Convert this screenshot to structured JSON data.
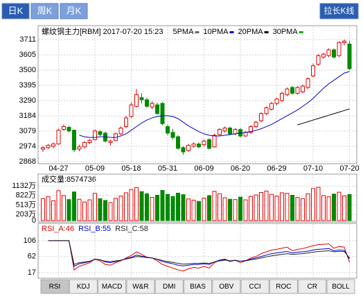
{
  "tabs": [
    {
      "label": "日K",
      "active": true
    },
    {
      "label": "周K",
      "active": false
    },
    {
      "label": "月K",
      "active": false
    }
  ],
  "stretch_button": "拉长K线",
  "chart_data": [
    {
      "type": "candlestick",
      "title": "螺纹钢主力[RBM] 2017-07-20 15:23",
      "categories": [
        null,
        null,
        null,
        "04-27",
        null,
        null,
        null,
        null,
        null,
        null,
        "05-09",
        null,
        null,
        null,
        null,
        null,
        null,
        "05-18",
        null,
        null,
        null,
        null,
        null,
        null,
        "05-31",
        null,
        null,
        null,
        null,
        null,
        null,
        "06-09",
        null,
        null,
        null,
        null,
        null,
        null,
        "06-20",
        null,
        null,
        null,
        null,
        null,
        null,
        "06-29",
        null,
        null,
        null,
        null,
        null,
        null,
        "07-10",
        null,
        null,
        null,
        null,
        null,
        null,
        "07-20"
      ],
      "open": [
        2955,
        2965,
        2975,
        2990,
        3090,
        3105,
        3085,
        2955,
        2970,
        3000,
        3020,
        3075,
        3065,
        3000,
        3015,
        3060,
        3110,
        3180,
        3250,
        3310,
        3295,
        3245,
        3260,
        3270,
        3110,
        3070,
        3040,
        2965,
        2945,
        2975,
        2990,
        2985,
        3020,
        2970,
        3055,
        3080,
        3100,
        3060,
        3090,
        3045,
        3070,
        3110,
        3150,
        3200,
        3230,
        3270,
        3290,
        3330,
        3380,
        3340,
        3350,
        3380,
        3460,
        3540,
        3590,
        3600,
        3640,
        3600,
        3690,
        3680
      ],
      "high": [
        2975,
        2990,
        3000,
        3095,
        3125,
        3115,
        3090,
        2985,
        3010,
        3025,
        3090,
        3085,
        3075,
        3020,
        3070,
        3110,
        3185,
        3275,
        3370,
        3340,
        3310,
        3285,
        3275,
        3280,
        3125,
        3095,
        3050,
        2975,
        2990,
        3000,
        3000,
        3020,
        3030,
        3060,
        3100,
        3110,
        3110,
        3100,
        3100,
        3080,
        3120,
        3150,
        3210,
        3250,
        3280,
        3310,
        3350,
        3380,
        3390,
        3390,
        3400,
        3450,
        3545,
        3610,
        3620,
        3650,
        3650,
        3700,
        3711,
        3700
      ],
      "low": [
        2935,
        2955,
        2960,
        2985,
        3080,
        3070,
        2935,
        2940,
        2960,
        2990,
        3015,
        3045,
        3000,
        2980,
        3010,
        3050,
        3100,
        3170,
        3240,
        3270,
        3240,
        3230,
        3190,
        3120,
        3050,
        3020,
        2950,
        2915,
        2935,
        2965,
        2960,
        2975,
        2950,
        2965,
        3045,
        3070,
        3050,
        3050,
        3035,
        3040,
        3060,
        3100,
        3140,
        3190,
        3220,
        3255,
        3280,
        3320,
        3330,
        3330,
        3340,
        3370,
        3450,
        3530,
        3580,
        3590,
        3580,
        3590,
        3670,
        3500
      ],
      "close": [
        2965,
        2980,
        2990,
        3085,
        3110,
        3080,
        2950,
        2970,
        3000,
        3015,
        3080,
        3055,
        3010,
        3010,
        3060,
        3100,
        3170,
        3260,
        3330,
        3295,
        3250,
        3270,
        3200,
        3130,
        3065,
        3035,
        2960,
        2935,
        2980,
        2990,
        2970,
        3010,
        2960,
        3050,
        3090,
        3100,
        3060,
        3090,
        3045,
        3070,
        3110,
        3140,
        3200,
        3240,
        3270,
        3300,
        3340,
        3370,
        3340,
        3380,
        3390,
        3440,
        3530,
        3600,
        3610,
        3640,
        3590,
        3690,
        3700,
        3510
      ],
      "up_color": "#e00000",
      "down_color": "#008a00",
      "series": [
        {
          "name": "5PMA",
          "color": "#666666"
        },
        {
          "name": "10PMA",
          "color": "#0000cc",
          "values": [
            null,
            null,
            null,
            null,
            null,
            null,
            null,
            3050,
            3040,
            3035,
            3035,
            3040,
            3040,
            3035,
            3035,
            3045,
            3060,
            3085,
            3110,
            3135,
            3155,
            3170,
            3180,
            3185,
            3185,
            3180,
            3165,
            3140,
            3115,
            3095,
            3075,
            3060,
            3050,
            3045,
            3045,
            3050,
            3055,
            3060,
            3065,
            3070,
            3075,
            3085,
            3095,
            3110,
            3125,
            3145,
            3165,
            3185,
            3205,
            3225,
            3250,
            3275,
            3305,
            3340,
            3375,
            3405,
            3430,
            3455,
            3480,
            3490
          ]
        },
        {
          "name": "20PMA",
          "color": "#000000",
          "values": [
            null,
            null,
            null,
            null,
            null,
            null,
            null,
            null,
            null,
            null,
            null,
            null,
            null,
            null,
            null,
            null,
            null,
            null,
            null,
            null,
            null,
            null,
            null,
            null,
            null,
            null,
            null,
            null,
            null,
            null,
            null,
            null,
            null,
            null,
            null,
            null,
            null,
            null,
            null,
            null,
            null,
            null,
            null,
            null,
            null,
            null,
            null,
            null,
            null,
            3122,
            3133,
            3144,
            3155,
            3166,
            3177,
            3188,
            3199,
            3210,
            3221,
            3232
          ]
        },
        {
          "name": "30PMA",
          "color": "#00aa00"
        }
      ],
      "ylim": [
        2868,
        3711
      ],
      "yticks": [
        3711,
        3605,
        3500,
        3395,
        3290,
        3184,
        3079,
        2974,
        2868
      ],
      "grid": true
    },
    {
      "type": "bar",
      "title": "成交量:8574736",
      "values": [
        7200000,
        7800000,
        6500000,
        9800000,
        8200000,
        6900000,
        9400000,
        7000000,
        6100000,
        6800000,
        8900000,
        7200000,
        6600000,
        5900000,
        7300000,
        8000000,
        9100000,
        10200000,
        10800000,
        9500000,
        8800000,
        7600000,
        8300000,
        9900000,
        8600000,
        7900000,
        9000000,
        8500000,
        7100000,
        6700000,
        6300000,
        7400000,
        8200000,
        9600000,
        8800000,
        7500000,
        7000000,
        6900000,
        7700000,
        6800000,
        7900000,
        8400000,
        9200000,
        9700000,
        8600000,
        8000000,
        9100000,
        8900000,
        8300000,
        7600000,
        7200000,
        8800000,
        10500000,
        10900000,
        8200000,
        7800000,
        8700000,
        9300000,
        8100000,
        8574736
      ],
      "ylim": [
        0,
        12500000
      ],
      "yticks": [
        {
          "value": 11320000,
          "label": "1132万"
        },
        {
          "value": 8220000,
          "label": "822万"
        },
        {
          "value": 5130000,
          "label": "513万"
        },
        {
          "value": 2030000,
          "label": "203万"
        },
        0
      ]
    },
    {
      "type": "line",
      "series": [
        {
          "name": "RSI_A:46",
          "color": "#e00000",
          "values": [
            null,
            106,
            106,
            106,
            106,
            106,
            25,
            35,
            40,
            45,
            55,
            50,
            40,
            38,
            45,
            50,
            58,
            65,
            75,
            68,
            60,
            58,
            50,
            40,
            35,
            30,
            25,
            22,
            28,
            32,
            30,
            35,
            30,
            45,
            52,
            55,
            48,
            52,
            45,
            50,
            58,
            62,
            70,
            75,
            80,
            82,
            85,
            88,
            78,
            82,
            84,
            88,
            92,
            95,
            96,
            97,
            85,
            90,
            88,
            46
          ]
        },
        {
          "name": "RSI_B:55",
          "color": "#0000cc",
          "values": [
            null,
            106,
            106,
            106,
            106,
            106,
            35,
            42,
            45,
            48,
            55,
            53,
            47,
            45,
            48,
            52,
            56,
            60,
            66,
            63,
            60,
            58,
            54,
            48,
            45,
            42,
            38,
            36,
            38,
            40,
            40,
            42,
            40,
            47,
            52,
            54,
            50,
            52,
            49,
            51,
            55,
            58,
            62,
            66,
            70,
            72,
            74,
            76,
            72,
            74,
            75,
            77,
            80,
            82,
            83,
            84,
            78,
            80,
            79,
            55
          ]
        },
        {
          "name": "RSI_C:58",
          "color": "#222222",
          "values": [
            null,
            106,
            106,
            106,
            106,
            106,
            40,
            45,
            47,
            49,
            54,
            53,
            49,
            48,
            50,
            52,
            55,
            58,
            62,
            61,
            59,
            58,
            55,
            51,
            48,
            46,
            43,
            41,
            42,
            43,
            43,
            44,
            43,
            47,
            50,
            52,
            50,
            51,
            49,
            50,
            53,
            55,
            58,
            61,
            64,
            66,
            68,
            70,
            68,
            69,
            70,
            72,
            74,
            76,
            77,
            78,
            75,
            76,
            76,
            58
          ]
        }
      ],
      "ylim": [
        4,
        123
      ],
      "yticks": [
        106,
        62,
        17
      ]
    }
  ],
  "indicator_tabs": [
    {
      "label": "RSI",
      "active": true
    },
    {
      "label": "KDJ",
      "active": false
    },
    {
      "label": "MACD",
      "active": false
    },
    {
      "label": "W&R",
      "active": false
    },
    {
      "label": "DMI",
      "active": false
    },
    {
      "label": "BIAS",
      "active": false
    },
    {
      "label": "OBV",
      "active": false
    },
    {
      "label": "CCI",
      "active": false
    },
    {
      "label": "ROC",
      "active": false
    },
    {
      "label": "CR",
      "active": false
    },
    {
      "label": "BOLL",
      "active": false
    }
  ]
}
